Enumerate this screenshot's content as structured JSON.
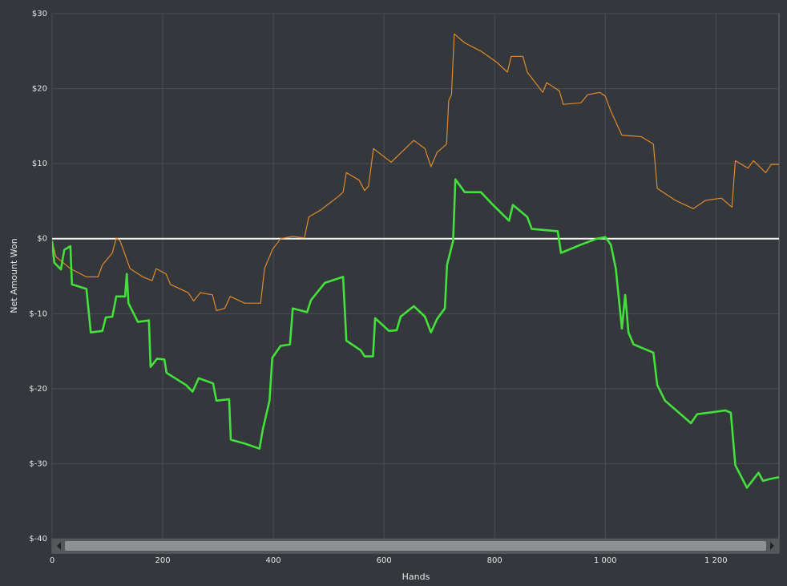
{
  "chart_data": {
    "type": "line",
    "xlabel": "Hands",
    "ylabel": "Net Amount Won",
    "xlim": [
      0,
      1314
    ],
    "ylim": [
      -40,
      30
    ],
    "xticks": [
      0,
      200,
      400,
      600,
      800,
      {
        "value": 1000,
        "label": "1 000"
      },
      {
        "value": 1200,
        "label": "1 200"
      }
    ],
    "yticks": [
      {
        "value": -40,
        "label": "$-40"
      },
      {
        "value": -30,
        "label": "$-30"
      },
      {
        "value": -20,
        "label": "$-20"
      },
      {
        "value": -10,
        "label": "$-10"
      },
      {
        "value": 0,
        "label": "$0"
      },
      {
        "value": 10,
        "label": "$10"
      },
      {
        "value": 20,
        "label": "$20"
      },
      {
        "value": 30,
        "label": "$30"
      }
    ],
    "grid": true,
    "series": [
      {
        "color": "#e08a2c",
        "width": 1.2,
        "x": [
          0,
          7,
          33,
          62,
          83,
          91,
          109,
          116,
          123,
          141,
          164,
          181,
          188,
          206,
          214,
          246,
          256,
          268,
          290,
          297,
          312,
          322,
          348,
          377,
          384,
          398,
          413,
          435,
          456,
          464,
          485,
          517,
          526,
          532,
          555,
          565,
          572,
          581,
          613,
          654,
          674,
          685,
          696,
          713,
          717,
          722,
          727,
          746,
          775,
          804,
          823,
          830,
          851,
          859,
          887,
          894,
          917,
          924,
          956,
          968,
          990,
          1000,
          1010,
          1030,
          1065,
          1087,
          1094,
          1127,
          1159,
          1181,
          1210,
          1229,
          1235,
          1258,
          1268,
          1290,
          1300,
          1314
        ],
        "values": [
          -0.3,
          -2.4,
          -4.0,
          -5.1,
          -5.1,
          -3.5,
          -1.9,
          0.1,
          -0.3,
          -4.0,
          -5.1,
          -5.6,
          -4.0,
          -4.7,
          -6.1,
          -7.2,
          -8.3,
          -7.2,
          -7.5,
          -9.6,
          -9.3,
          -7.7,
          -8.6,
          -8.6,
          -4.0,
          -1.5,
          0,
          0.3,
          0.1,
          2.9,
          3.8,
          5.6,
          6.2,
          8.8,
          7.8,
          6.4,
          7.0,
          12.0,
          10.2,
          13.1,
          12.0,
          9.6,
          11.5,
          12.6,
          18.4,
          19.2,
          27.3,
          26.1,
          25.0,
          23.5,
          22.2,
          24.3,
          24.3,
          22.2,
          19.5,
          20.8,
          19.7,
          17.9,
          18.1,
          19.2,
          19.5,
          19.0,
          17.0,
          13.8,
          13.6,
          12.6,
          6.7,
          5.1,
          4.0,
          5.1,
          5.4,
          4.2,
          10.4,
          9.4,
          10.4,
          8.8,
          9.9,
          9.9
        ]
      },
      {
        "color": "#44e03c",
        "width": 2.6,
        "x": [
          0,
          4,
          16,
          22,
          33,
          36,
          62,
          70,
          91,
          97,
          109,
          116,
          132,
          135,
          138,
          155,
          175,
          178,
          190,
          203,
          207,
          242,
          254,
          265,
          291,
          297,
          320,
          323,
          348,
          375,
          381,
          393,
          398,
          413,
          430,
          435,
          461,
          468,
          493,
          526,
          532,
          558,
          565,
          580,
          584,
          609,
          623,
          630,
          654,
          674,
          685,
          696,
          710,
          714,
          725,
          729,
          746,
          775,
          797,
          826,
          833,
          859,
          867,
          914,
          920,
          956,
          985,
          1000,
          1010,
          1019,
          1030,
          1036,
          1042,
          1051,
          1087,
          1094,
          1108,
          1155,
          1166,
          1217,
          1227,
          1235,
          1256,
          1277,
          1285,
          1300,
          1314
        ],
        "values": [
          -0.3,
          -3.2,
          -4.1,
          -1.5,
          -1.0,
          -6.1,
          -6.7,
          -12.5,
          -12.3,
          -10.5,
          -10.4,
          -7.7,
          -7.7,
          -4.7,
          -8.6,
          -11.1,
          -10.9,
          -17.1,
          -16.0,
          -16.1,
          -17.9,
          -19.5,
          -20.4,
          -18.6,
          -19.3,
          -21.6,
          -21.4,
          -26.8,
          -27.3,
          -28.0,
          -25.4,
          -21.6,
          -15.9,
          -14.3,
          -14.1,
          -9.3,
          -9.8,
          -8.2,
          -5.9,
          -5.1,
          -13.6,
          -14.9,
          -15.7,
          -15.7,
          -10.6,
          -12.3,
          -12.2,
          -10.4,
          -9.0,
          -10.4,
          -12.5,
          -10.7,
          -9.3,
          -3.5,
          -0.3,
          7.9,
          6.2,
          6.2,
          4.5,
          2.4,
          4.5,
          2.9,
          1.3,
          1.0,
          -1.9,
          -0.8,
          0,
          0.2,
          -0.8,
          -4.0,
          -12.0,
          -7.5,
          -12.5,
          -14.1,
          -15.2,
          -19.5,
          -21.6,
          -24.6,
          -23.4,
          -22.9,
          -23.2,
          -30.2,
          -33.2,
          -31.2,
          -32.3,
          -32.0,
          -31.8
        ]
      }
    ]
  }
}
